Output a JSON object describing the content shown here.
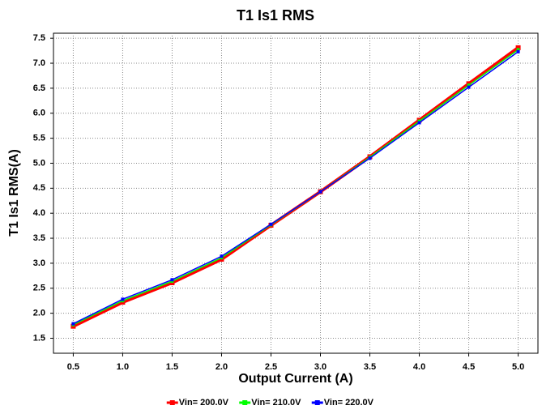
{
  "chart_data": {
    "type": "line",
    "title": "T1 Is1 RMS",
    "xlabel": "Output Current (A)",
    "ylabel": "T1 Is1 RMS(A)",
    "x": [
      0.5,
      1,
      1.5,
      2,
      2.5,
      3,
      3.5,
      4,
      4.5,
      5
    ],
    "series": [
      {
        "name": "Vin= 200.0V",
        "color": "#ff0000",
        "values": [
          1.74,
          2.22,
          2.61,
          3.08,
          3.76,
          4.43,
          5.13,
          5.86,
          6.59,
          7.31
        ]
      },
      {
        "name": "Vin= 210.0V",
        "color": "#00ff00",
        "values": [
          1.77,
          2.25,
          2.64,
          3.11,
          3.77,
          4.43,
          5.12,
          5.84,
          6.56,
          7.27
        ]
      },
      {
        "name": "Vin= 220.0V",
        "color": "#0000ff",
        "values": [
          1.79,
          2.28,
          2.67,
          3.14,
          3.78,
          4.43,
          5.1,
          5.81,
          6.52,
          7.23
        ]
      }
    ],
    "xlim": [
      0.3,
      5.2
    ],
    "xticks": [
      0.5,
      {
        "value": 1,
        "label": "1.0"
      },
      1.5,
      {
        "value": 2,
        "label": "2.0"
      },
      2.5,
      {
        "value": 3,
        "label": "3.0"
      },
      3.5,
      {
        "value": 4,
        "label": "4.0"
      },
      4.5,
      {
        "value": 5,
        "label": "5.0"
      }
    ],
    "ylim": [
      1.2,
      7.6
    ],
    "yticks": [
      1.5,
      {
        "value": 2,
        "label": "2.0"
      },
      2.5,
      {
        "value": 3,
        "label": "3.0"
      },
      3.5,
      {
        "value": 4,
        "label": "4.0"
      },
      4.5,
      {
        "value": 5,
        "label": "5.0"
      },
      5.5,
      {
        "value": 6,
        "label": "6.0"
      },
      6.5,
      {
        "value": 7,
        "label": "7.0"
      },
      7.5
    ],
    "grid": true,
    "legend": "bottom"
  }
}
